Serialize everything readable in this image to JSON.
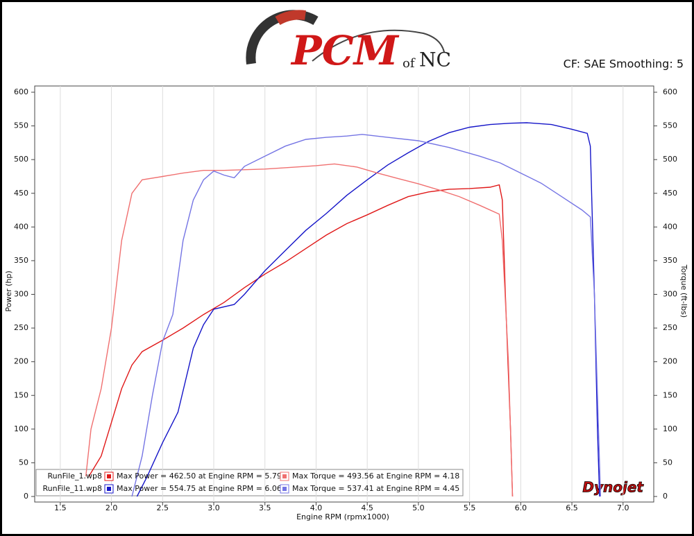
{
  "chart_data": {
    "type": "line",
    "brand": [
      "PCM",
      "of",
      "NC"
    ],
    "settings_label": "CF: SAE Smoothing: 5",
    "watermark": "Dynojet",
    "xlabel": "Engine RPM (rpmx1000)",
    "ylabel": "Power (hp)",
    "y2label": "Torque (ft-lbs)",
    "xlim": [
      1.25,
      7.3
    ],
    "xticks": [
      1.5,
      {
        "value": 2,
        "label": "2.0"
      },
      2.5,
      {
        "value": 3,
        "label": "3.0"
      },
      3.5,
      {
        "value": 4,
        "label": "4.0"
      },
      4.5,
      {
        "value": 5,
        "label": "5.0"
      },
      5.5,
      {
        "value": 6,
        "label": "6.0"
      },
      6.5,
      {
        "value": 7,
        "label": "7.0"
      }
    ],
    "ylim": [
      0,
      600
    ],
    "yticks": [
      0,
      50,
      100,
      150,
      200,
      250,
      300,
      350,
      400,
      450,
      500,
      550,
      600
    ],
    "y2lim": [
      0,
      600
    ],
    "y2ticks": [
      0,
      50,
      100,
      150,
      200,
      250,
      300,
      350,
      400,
      450,
      500,
      550,
      600
    ],
    "grid": true,
    "runs": [
      "RunFile_1.wp8",
      "RunFile_11.wp8"
    ],
    "series": [
      {
        "name": "Max Power = 462.50 at Engine RPM = 5.79",
        "color": "#e01818",
        "x": [
          1.78,
          1.9,
          2.0,
          2.1,
          2.2,
          2.3,
          2.5,
          2.7,
          2.9,
          3.1,
          3.3,
          3.5,
          3.7,
          3.9,
          4.1,
          4.3,
          4.5,
          4.7,
          4.9,
          5.1,
          5.3,
          5.5,
          5.7,
          5.79,
          5.82,
          5.85,
          5.9,
          5.92
        ],
        "y": [
          30,
          60,
          110,
          160,
          195,
          215,
          232,
          250,
          270,
          288,
          310,
          330,
          348,
          368,
          388,
          405,
          418,
          432,
          445,
          452,
          456,
          457,
          459,
          462.5,
          440,
          300,
          100,
          0
        ]
      },
      {
        "name": "Max Power = 554.75 at Engine RPM = 6.06",
        "color": "#1414c8",
        "x": [
          2.25,
          2.35,
          2.5,
          2.65,
          2.8,
          2.9,
          3.0,
          3.2,
          3.3,
          3.5,
          3.7,
          3.9,
          4.1,
          4.3,
          4.5,
          4.7,
          4.9,
          5.1,
          5.3,
          5.5,
          5.7,
          5.9,
          6.06,
          6.3,
          6.5,
          6.65,
          6.68,
          6.72,
          6.75,
          6.77
        ],
        "y": [
          0,
          30,
          80,
          125,
          220,
          255,
          278,
          285,
          300,
          335,
          365,
          395,
          420,
          447,
          470,
          492,
          510,
          527,
          540,
          548,
          552,
          554,
          554.75,
          552,
          545,
          539,
          520,
          300,
          100,
          0
        ]
      },
      {
        "name": "Max Torque = 493.56 at Engine RPM = 4.18",
        "color": "#f07070",
        "axis": "y2",
        "x": [
          1.75,
          1.8,
          1.9,
          2.0,
          2.1,
          2.2,
          2.3,
          2.5,
          2.7,
          2.9,
          3.1,
          3.5,
          3.8,
          4.0,
          4.18,
          4.4,
          4.6,
          4.8,
          5.0,
          5.2,
          5.4,
          5.6,
          5.79,
          5.82,
          5.88,
          5.92
        ],
        "y": [
          30,
          100,
          160,
          250,
          380,
          450,
          470,
          475,
          480,
          484,
          484,
          486,
          489,
          491,
          493.56,
          489,
          480,
          472,
          464,
          455,
          445,
          432,
          419,
          380,
          200,
          0
        ]
      },
      {
        "name": "Max Torque = 537.41 at Engine RPM = 4.45",
        "color": "#7474e4",
        "axis": "y2",
        "x": [
          2.2,
          2.3,
          2.4,
          2.5,
          2.6,
          2.7,
          2.8,
          2.9,
          3.0,
          3.1,
          3.2,
          3.3,
          3.5,
          3.7,
          3.9,
          4.1,
          4.3,
          4.45,
          4.7,
          5.0,
          5.3,
          5.6,
          5.8,
          6.0,
          6.2,
          6.4,
          6.6,
          6.68,
          6.72,
          6.75,
          6.78
        ],
        "y": [
          0,
          60,
          150,
          230,
          270,
          380,
          440,
          470,
          483,
          477,
          473,
          490,
          505,
          520,
          530,
          533,
          535,
          537.41,
          533,
          528,
          518,
          505,
          495,
          480,
          465,
          445,
          425,
          415,
          300,
          150,
          0
        ]
      }
    ]
  }
}
